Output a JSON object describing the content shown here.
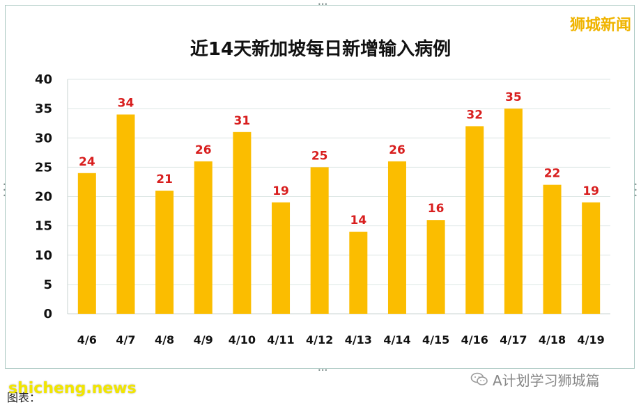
{
  "watermark_top_right": "狮城新闻",
  "chart_data": {
    "type": "bar",
    "title": "近14天新加坡每日新增输入病例",
    "categories": [
      "4/6",
      "4/7",
      "4/8",
      "4/9",
      "4/10",
      "4/11",
      "4/12",
      "4/13",
      "4/14",
      "4/15",
      "4/16",
      "4/17",
      "4/18",
      "4/19"
    ],
    "values": [
      24,
      34,
      21,
      26,
      31,
      19,
      25,
      14,
      26,
      16,
      32,
      35,
      22,
      19
    ],
    "ylim": [
      0,
      40
    ],
    "yticks": [
      0,
      5,
      10,
      15,
      20,
      25,
      30,
      35,
      40
    ],
    "xlabel": "",
    "ylabel": "",
    "grid": true,
    "colors": {
      "bar": "#fbbd00",
      "data_label": "#d81e1e",
      "grid": "#dde6e4"
    }
  },
  "footer": {
    "wechat_text": "A计划学习狮城篇",
    "source_note": "图表：",
    "site_mark": "shicheng.news"
  }
}
